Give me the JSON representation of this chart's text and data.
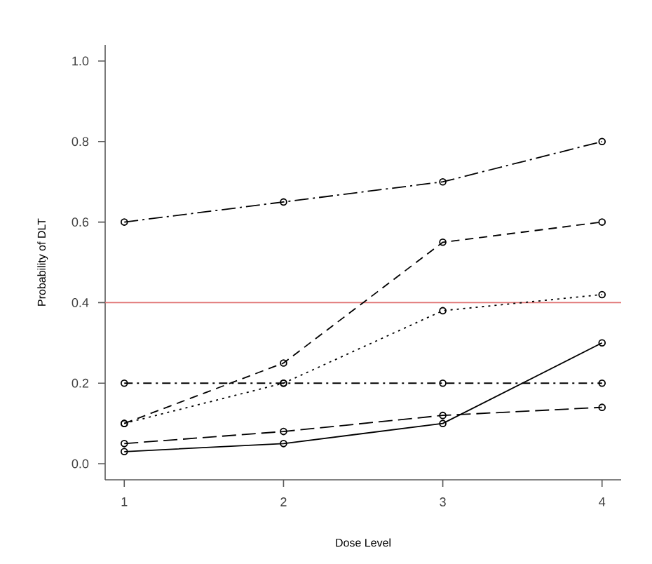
{
  "chart_data": {
    "type": "line",
    "xlabel": "Dose Level",
    "ylabel": "Probability of DLT",
    "x": [
      1,
      2,
      3,
      4
    ],
    "xlim": [
      0.88,
      4.12
    ],
    "ylim": [
      -0.04,
      1.04
    ],
    "xticks": [
      1,
      2,
      3,
      4
    ],
    "yticks": [
      {
        "value": 0,
        "label": "0.0"
      },
      {
        "value": 0.2,
        "label": "0.2"
      },
      {
        "value": 0.4,
        "label": "0.4"
      },
      {
        "value": 0.6,
        "label": "0.6"
      },
      {
        "value": 0.8,
        "label": "0.8"
      },
      {
        "value": 1,
        "label": "1.0"
      }
    ],
    "marker": "circle",
    "grid": false,
    "series": [
      {
        "color": "#000000",
        "line_style": "longdashdot",
        "values": [
          0.6,
          0.65,
          0.7,
          0.8
        ]
      },
      {
        "color": "#000000",
        "line_style": "dashed",
        "values": [
          0.1,
          0.25,
          0.55,
          0.6
        ]
      },
      {
        "color": "#000000",
        "line_style": "dotted",
        "values": [
          0.1,
          0.2,
          0.38,
          0.42
        ]
      },
      {
        "color": "#000000",
        "line_style": "dashdot",
        "values": [
          0.2,
          0.2,
          0.2,
          0.2
        ]
      },
      {
        "color": "#000000",
        "line_style": "longdash",
        "values": [
          0.05,
          0.08,
          0.12,
          0.14
        ]
      },
      {
        "color": "#000000",
        "line_style": "solid",
        "values": [
          0.03,
          0.05,
          0.1,
          0.3
        ]
      }
    ],
    "ref_lines": [
      {
        "axis": "y",
        "value": 0.4,
        "color": "#e07070"
      }
    ]
  }
}
